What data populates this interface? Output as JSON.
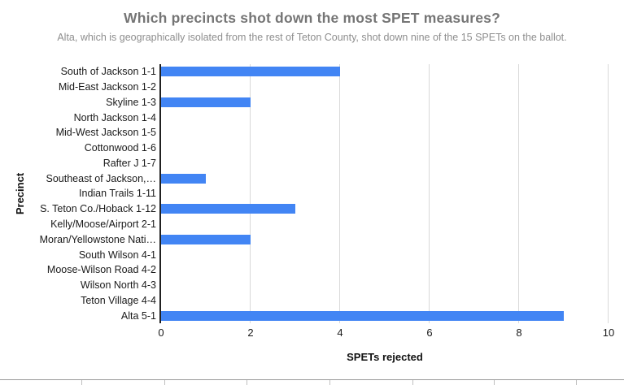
{
  "chart_data": {
    "type": "bar",
    "orientation": "horizontal",
    "title": "Which precincts shot down the most SPET measures?",
    "subtitle": "Alta, which is geographically isolated from the rest of Teton County, shot down nine of the 15 SPETs on the ballot.",
    "xlabel": "SPETs rejected",
    "ylabel": "Precinct",
    "categories": [
      "South of Jackson 1-1",
      "Mid-East Jackson 1-2",
      "Skyline 1-3",
      "North Jackson 1-4",
      "Mid-West Jackson 1-5",
      "Cottonwood 1-6",
      "Rafter J 1-7",
      "Southeast of Jackson,…",
      "Indian Trails 1-11",
      "S. Teton Co./Hoback 1-12",
      "Kelly/Moose/Airport 2-1",
      "Moran/Yellowstone Nati…",
      "South Wilson 4-1",
      "Moose-Wilson Road 4-2",
      "Wilson North 4-3",
      "Teton Village 4-4",
      "Alta 5-1"
    ],
    "values": [
      4,
      0,
      2,
      0,
      0,
      0,
      0,
      1,
      0,
      3,
      0,
      2,
      0,
      0,
      0,
      0,
      9
    ],
    "xlim": [
      0,
      10
    ],
    "xticks": [
      0,
      2,
      4,
      6,
      8,
      10
    ],
    "grid": true,
    "legend": "none",
    "bar_color": "#4285f4"
  },
  "colors": {
    "bar": "#4285f4",
    "title": "#757575",
    "subtitle": "#8e8e8e",
    "axis_labels": "#1a1a1a",
    "gridline": "#d9d9d9",
    "axis_line": "#212121",
    "sheet_border": "#9a9a9a",
    "sheet_gridline": "#c0c0c0"
  }
}
